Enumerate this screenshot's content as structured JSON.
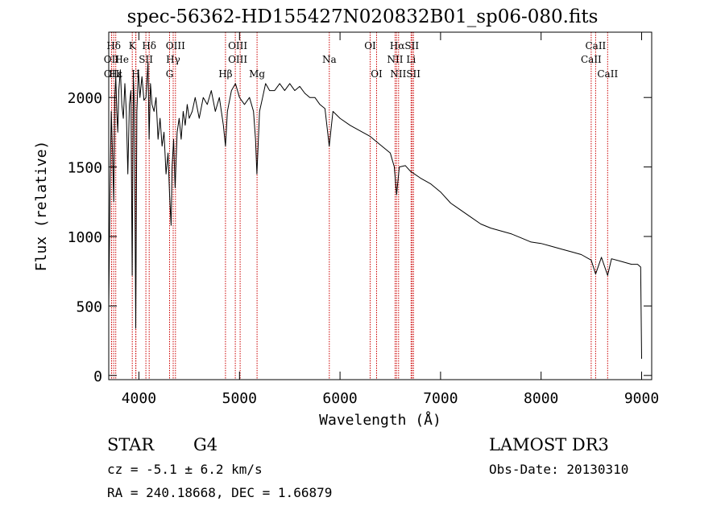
{
  "chart_data": {
    "type": "line",
    "title": "spec-56362-HD155427N020832B01_sp06-080.fits",
    "xlabel": "Wavelength (Å)",
    "ylabel": "Flux (relative)",
    "xlim": [
      3700,
      9100
    ],
    "ylim": [
      -30,
      2470
    ],
    "xticks": [
      4000,
      5000,
      6000,
      7000,
      8000,
      9000
    ],
    "yticks": [
      0,
      500,
      1000,
      1500,
      2000
    ],
    "series": [
      {
        "name": "spectrum",
        "x": [
          3700,
          3712,
          3725,
          3738,
          3750,
          3760,
          3770,
          3780,
          3790,
          3800,
          3815,
          3830,
          3845,
          3860,
          3875,
          3890,
          3905,
          3920,
          3933,
          3945,
          3955,
          3968,
          3980,
          3995,
          4010,
          4030,
          4050,
          4070,
          4090,
          4101,
          4115,
          4130,
          4150,
          4170,
          4190,
          4210,
          4230,
          4250,
          4270,
          4290,
          4305,
          4320,
          4330,
          4345,
          4360,
          4380,
          4400,
          4420,
          4440,
          4460,
          4480,
          4500,
          4530,
          4560,
          4600,
          4640,
          4680,
          4720,
          4760,
          4800,
          4840,
          4861,
          4880,
          4920,
          4960,
          5000,
          5050,
          5100,
          5140,
          5160,
          5173,
          5185,
          5200,
          5230,
          5260,
          5300,
          5350,
          5400,
          5450,
          5500,
          5550,
          5600,
          5650,
          5700,
          5750,
          5800,
          5850,
          5893,
          5930,
          6000,
          6100,
          6200,
          6300,
          6400,
          6500,
          6540,
          6563,
          6590,
          6650,
          6700,
          6800,
          6900,
          7000,
          7100,
          7200,
          7300,
          7400,
          7500,
          7600,
          7700,
          7800,
          7900,
          8000,
          8100,
          8200,
          8300,
          8400,
          8498,
          8542,
          8600,
          8662,
          8700,
          8800,
          8900,
          8960,
          8990,
          9000
        ],
        "y": [
          500,
          1300,
          1900,
          1600,
          1250,
          2000,
          2150,
          1900,
          1750,
          2050,
          2200,
          1950,
          1850,
          2100,
          1900,
          1450,
          1950,
          2050,
          720,
          2150,
          1950,
          340,
          1900,
          2200,
          2000,
          2150,
          1980,
          2000,
          2250,
          1700,
          2100,
          1950,
          1900,
          2000,
          1700,
          1850,
          1650,
          1750,
          1450,
          1600,
          1300,
          1080,
          1500,
          1700,
          1350,
          1750,
          1850,
          1700,
          1900,
          1800,
          1950,
          1850,
          1900,
          2000,
          1850,
          2000,
          1950,
          2050,
          1900,
          2000,
          1800,
          1650,
          1900,
          2050,
          2100,
          2000,
          1950,
          2000,
          1900,
          1700,
          1450,
          1650,
          1900,
          2000,
          2100,
          2050,
          2050,
          2100,
          2050,
          2100,
          2050,
          2080,
          2030,
          2000,
          2000,
          1950,
          1920,
          1650,
          1900,
          1850,
          1800,
          1760,
          1720,
          1660,
          1600,
          1500,
          1300,
          1500,
          1510,
          1470,
          1420,
          1380,
          1320,
          1240,
          1190,
          1140,
          1090,
          1060,
          1040,
          1020,
          990,
          960,
          950,
          930,
          910,
          890,
          870,
          830,
          730,
          850,
          720,
          840,
          820,
          800,
          800,
          780,
          120
        ]
      }
    ],
    "lines": [
      {
        "label": "Hδ",
        "wavelength": 3750
      },
      {
        "label": "OII",
        "wavelength": 3727
      },
      {
        "label": "OII",
        "wavelength": 3729
      },
      {
        "label": "Hε",
        "wavelength": 3770
      },
      {
        "label": "K",
        "wavelength": 3934
      },
      {
        "label": "Hε",
        "wavelength": 3970
      },
      {
        "label": "H",
        "wavelength": 3968
      },
      {
        "label": "SII",
        "wavelength": 4069
      },
      {
        "label": "Hδ",
        "wavelength": 4102
      },
      {
        "label": "OIII",
        "wavelength": 4363
      },
      {
        "label": "Hγ",
        "wavelength": 4341
      },
      {
        "label": "G",
        "wavelength": 4305
      },
      {
        "label": "Hβ",
        "wavelength": 4861
      },
      {
        "label": "OIII",
        "wavelength": 4959
      },
      {
        "label": "OIII",
        "wavelength": 5007
      },
      {
        "label": "Mg",
        "wavelength": 5175
      },
      {
        "label": "Na",
        "wavelength": 5894
      },
      {
        "label": "OI",
        "wavelength": 6300
      },
      {
        "label": "OI",
        "wavelength": 6364
      },
      {
        "label": "Hα",
        "wavelength": 6563
      },
      {
        "label": "NII",
        "wavelength": 6548
      },
      {
        "label": "NII",
        "wavelength": 6583
      },
      {
        "label": "SII",
        "wavelength": 6717
      },
      {
        "label": "Li",
        "wavelength": 6707
      },
      {
        "label": "SII",
        "wavelength": 6731
      },
      {
        "label": "CaII",
        "wavelength": 8498
      },
      {
        "label": "CaII",
        "wavelength": 8542
      },
      {
        "label": "CaII",
        "wavelength": 8662
      }
    ],
    "line_labels": [
      {
        "text": "Hδ",
        "wavelength": 3750,
        "row": 1
      },
      {
        "text": "K",
        "wavelength": 3934,
        "row": 1
      },
      {
        "text": "Hδ",
        "wavelength": 4102,
        "row": 1
      },
      {
        "text": "OIII",
        "wavelength": 4363,
        "row": 1
      },
      {
        "text": "OIII",
        "wavelength": 4983,
        "row": 1
      },
      {
        "text": "OI",
        "wavelength": 6300,
        "row": 1
      },
      {
        "text": "HαSII",
        "wavelength": 6640,
        "row": 1
      },
      {
        "text": "CaII",
        "wavelength": 8542,
        "row": 1
      },
      {
        "text": "OII",
        "wavelength": 3727,
        "row": 2
      },
      {
        "text": "He",
        "wavelength": 3830,
        "row": 2
      },
      {
        "text": "SII",
        "wavelength": 4069,
        "row": 2
      },
      {
        "text": "Hγ",
        "wavelength": 4341,
        "row": 2
      },
      {
        "text": "OIII",
        "wavelength": 4983,
        "row": 2
      },
      {
        "text": "Na",
        "wavelength": 5894,
        "row": 2
      },
      {
        "text": "NII",
        "wavelength": 6548,
        "row": 2
      },
      {
        "text": "Li",
        "wavelength": 6707,
        "row": 2
      },
      {
        "text": "CaII",
        "wavelength": 8498,
        "row": 2
      },
      {
        "text": "OII",
        "wavelength": 3729,
        "row": 3
      },
      {
        "text": "Hε",
        "wavelength": 3770,
        "row": 3
      },
      {
        "text": "H",
        "wavelength": 3968,
        "row": 3
      },
      {
        "text": "G",
        "wavelength": 4305,
        "row": 3
      },
      {
        "text": "Hβ",
        "wavelength": 4861,
        "row": 3
      },
      {
        "text": "Mg",
        "wavelength": 5175,
        "row": 3
      },
      {
        "text": "OI",
        "wavelength": 6364,
        "row": 3
      },
      {
        "text": "NIISII",
        "wavelength": 6650,
        "row": 3
      },
      {
        "text": "CaII",
        "wavelength": 8662,
        "row": 3
      }
    ]
  },
  "colors": {
    "line_marker": "#cc0000",
    "spectrum": "#000000",
    "axis": "#000000"
  },
  "footer": {
    "class_label": "STAR",
    "subclass": "G4",
    "survey": "LAMOST DR3",
    "cz": "cz = -5.1 ± 6.2 km/s",
    "obs_date": "Obs-Date: 20130310",
    "coords": "RA = 240.18668, DEC =   1.66879"
  }
}
